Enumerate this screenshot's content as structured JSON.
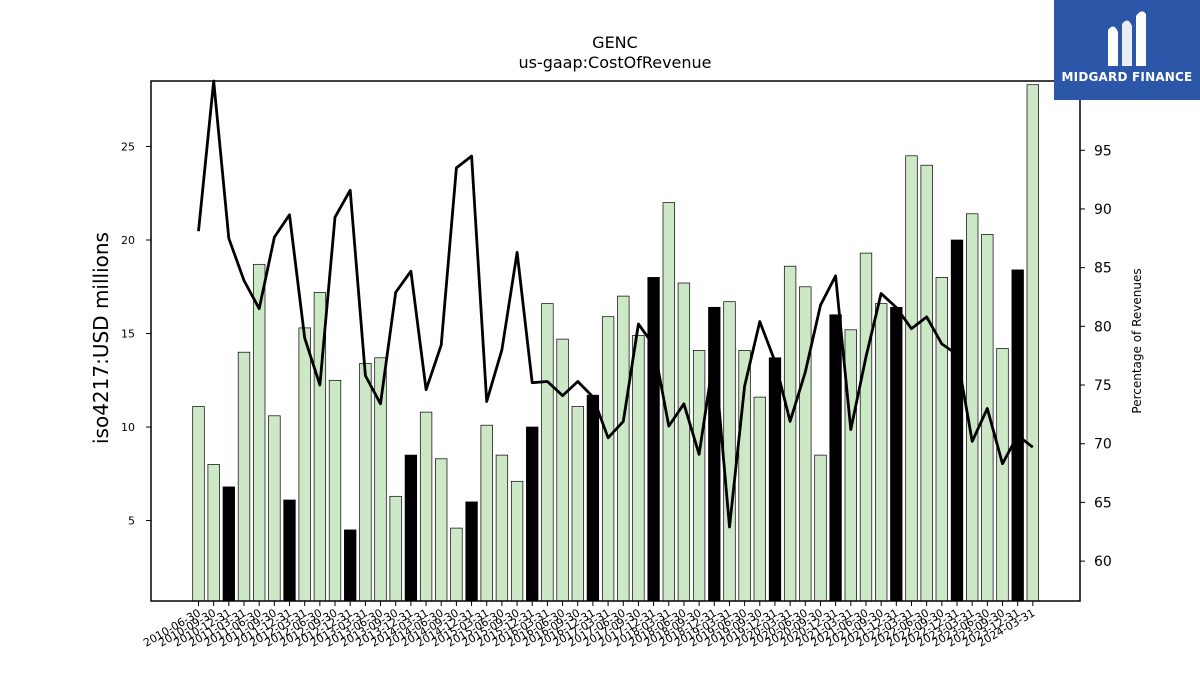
{
  "chart_data": {
    "type": "bar+line",
    "title": "GENC",
    "subtitle": "us-gaap:CostOfRevenue",
    "ylabel": "iso4217:USD  millions",
    "y2label": "Percentage of Revenues",
    "ylim": [
      0.7,
      28.5
    ],
    "y2lim": [
      56.6,
      100.9
    ],
    "yticks": [
      5,
      10,
      15,
      20,
      25
    ],
    "y2ticks": [
      60,
      65,
      70,
      75,
      80,
      85,
      90,
      95
    ],
    "categories": [
      "2010-06-30",
      "2010-09-30",
      "2010-12-31",
      "2011-03-31",
      "2011-06-30",
      "2011-09-30",
      "2011-12-31",
      "2012-03-31",
      "2012-06-30",
      "2012-09-30",
      "2012-12-31",
      "2013-03-31",
      "2013-06-30",
      "2013-09-30",
      "2013-12-31",
      "2014-03-31",
      "2014-06-30",
      "2014-09-30",
      "2014-12-31",
      "2015-03-31",
      "2015-06-30",
      "2015-09-30",
      "2015-12-31",
      "2016-03-31",
      "2016-06-30",
      "2016-09-30",
      "2016-12-31",
      "2017-03-31",
      "2017-06-30",
      "2017-09-30",
      "2017-12-31",
      "2018-03-31",
      "2018-06-30",
      "2018-09-30",
      "2018-12-31",
      "2019-03-31",
      "2019-06-30",
      "2019-09-30",
      "2019-12-31",
      "2020-03-31",
      "2020-06-30",
      "2020-09-30",
      "2020-12-31",
      "2021-03-31",
      "2021-06-30",
      "2021-09-30",
      "2021-12-31",
      "2022-03-31",
      "2022-06-30",
      "2022-09-30",
      "2022-12-31",
      "2023-03-31",
      "2023-06-30",
      "2023-09-30",
      "2023-12-31",
      "2024-03-31"
    ],
    "series": [
      {
        "kind": "bar",
        "values": [
          11.1,
          8.0,
          6.8,
          14.0,
          18.7,
          10.6,
          6.1,
          15.3,
          17.2,
          12.5,
          4.5,
          13.4,
          13.7,
          6.3,
          8.5,
          10.8,
          8.3,
          4.6,
          6.0,
          10.1,
          8.5,
          7.1,
          10.0,
          16.6,
          14.7,
          11.1,
          11.7,
          15.9,
          17.0,
          14.9,
          18.0,
          22.0,
          17.7,
          14.1,
          16.4,
          16.7,
          14.1,
          11.6,
          13.7,
          18.6,
          17.5,
          8.5,
          16.0,
          15.2,
          19.3,
          16.6,
          16.4,
          24.5,
          24.0,
          18.0,
          20.0,
          21.4,
          20.3,
          14.2,
          18.4,
          28.3
        ],
        "highlight": [
          false,
          false,
          true,
          false,
          false,
          false,
          true,
          false,
          false,
          false,
          true,
          false,
          false,
          false,
          true,
          false,
          false,
          false,
          true,
          false,
          false,
          false,
          true,
          false,
          false,
          false,
          true,
          false,
          false,
          false,
          true,
          false,
          false,
          false,
          true,
          false,
          false,
          false,
          true,
          false,
          false,
          false,
          true,
          false,
          false,
          false,
          true,
          false,
          false,
          false,
          true,
          false,
          false,
          false,
          true,
          false
        ]
      },
      {
        "kind": "line",
        "axis": "right",
        "values": [
          88.1,
          100.9,
          87.5,
          83.9,
          81.5,
          87.6,
          89.5,
          79.0,
          75.0,
          89.3,
          91.6,
          75.8,
          73.4,
          82.9,
          84.7,
          74.6,
          78.4,
          93.5,
          94.5,
          73.6,
          78.0,
          86.3,
          75.2,
          75.3,
          74.1,
          75.3,
          74.0,
          70.5,
          71.9,
          80.2,
          78.4,
          71.5,
          73.4,
          69.1,
          77.7,
          62.9,
          74.9,
          80.4,
          77.0,
          71.9,
          76.1,
          81.8,
          84.3,
          71.2,
          77.4,
          82.8,
          81.6,
          79.8,
          80.8,
          78.5,
          77.6,
          70.2,
          73.0,
          68.3,
          70.7,
          69.7
        ]
      }
    ],
    "colors": {
      "bar": "#cde8c7",
      "bar_highlight": "#000000",
      "line": "#000000"
    },
    "grid": false,
    "legend": "none"
  },
  "logo": {
    "text": "MIDGARD FINANCE",
    "background": "#2c57a8"
  }
}
